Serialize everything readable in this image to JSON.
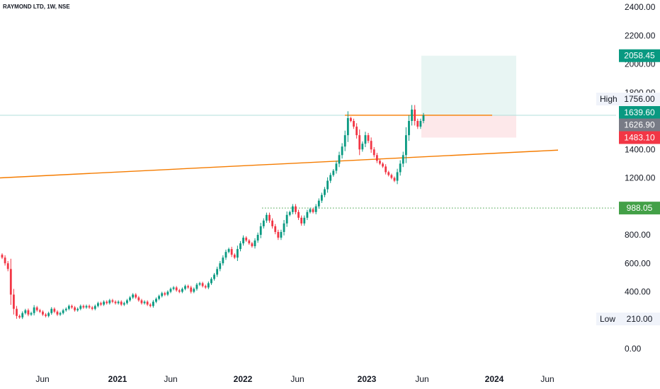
{
  "chart_data": {
    "type": "candlestick",
    "title": "RAYMOND LTD, 1W, NSE",
    "x_ticks": [
      "Jun",
      "2021",
      "Jun",
      "2022",
      "Jun",
      "2023",
      "Jun",
      "2024",
      "Jun"
    ],
    "y_ticks": [
      0,
      200,
      400,
      600,
      800,
      1000,
      1200,
      1400,
      1600,
      1800,
      2000,
      2200,
      2400
    ],
    "y_tick_labels": [
      "0.00",
      "200.00",
      "400.00",
      "600.00",
      "800.00",
      "1000.00",
      "1200.00",
      "1400.00",
      "1600.00",
      "1800.00",
      "2000.00",
      "2200.00",
      "2400.00"
    ],
    "ylim": [
      -100,
      2430
    ],
    "price_labels": {
      "target": {
        "text": "2058.45",
        "color": "#089981"
      },
      "high": {
        "tag": "High",
        "text": "1756.00"
      },
      "last": {
        "text": "1639.60",
        "color": "#089981"
      },
      "mid": {
        "text": "1626.90",
        "color": "#787b86"
      },
      "stop": {
        "text": "1483.10",
        "color": "#f23645"
      },
      "support": {
        "text": "988.05",
        "color": "#43a047"
      },
      "low": {
        "tag": "Low",
        "text": "210.00"
      }
    },
    "levels": {
      "target": 2058.45,
      "entry": 1639.6,
      "stop": 1483.1,
      "support": 988.05,
      "resistance": 1640
    },
    "trendline": {
      "from": 1200,
      "to": 1395
    },
    "colors": {
      "up": "#089981",
      "down": "#f23645",
      "trend": "#f57c00",
      "support": "#43a047",
      "target_zone": "#e8f5f3",
      "stop_zone": "#fde8ea"
    },
    "candle_closes": [
      640,
      600,
      560,
      380,
      280,
      230,
      220,
      250,
      270,
      240,
      250,
      290,
      270,
      260,
      240,
      230,
      250,
      280,
      260,
      240,
      250,
      270,
      280,
      300,
      290,
      270,
      280,
      300,
      290,
      300,
      290,
      280,
      300,
      320,
      310,
      330,
      320,
      340,
      330,
      320,
      330,
      310,
      320,
      340,
      360,
      380,
      360,
      340,
      320,
      330,
      310,
      300,
      330,
      350,
      370,
      390,
      380,
      400,
      420,
      430,
      410,
      400,
      420,
      440,
      430,
      400,
      420,
      450,
      460,
      440,
      430,
      460,
      490,
      520,
      560,
      600,
      640,
      680,
      700,
      660,
      640,
      700,
      740,
      780,
      760,
      740,
      720,
      760,
      800,
      860,
      900,
      940,
      900,
      860,
      820,
      780,
      820,
      880,
      940,
      960,
      1000,
      960,
      920,
      880,
      920,
      960,
      980,
      960,
      1000,
      1040,
      1080,
      1120,
      1180,
      1220,
      1250,
      1300,
      1360,
      1420,
      1500,
      1620,
      1600,
      1560,
      1500,
      1400,
      1440,
      1500,
      1460,
      1400,
      1360,
      1320,
      1300,
      1280,
      1240,
      1220,
      1200,
      1180,
      1240,
      1300,
      1360,
      1500,
      1600,
      1680,
      1600,
      1560,
      1600,
      1640
    ]
  }
}
